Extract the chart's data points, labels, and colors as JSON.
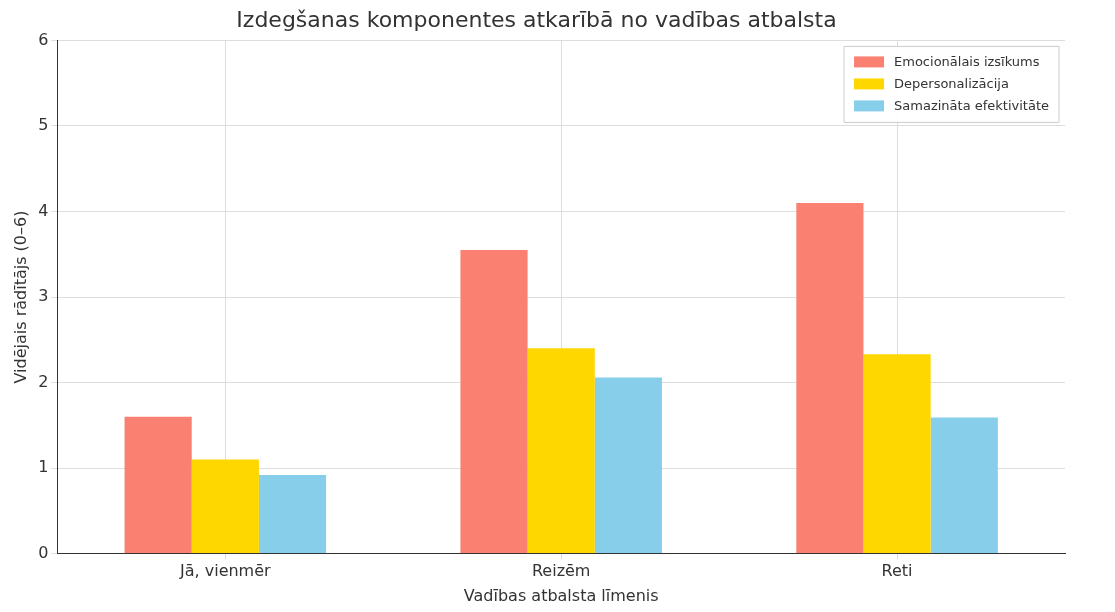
{
  "chart_data": {
    "type": "bar",
    "title": "Izdegšanas komponentes atkarībā no vadības atbalsta",
    "xlabel": "Vadības atbalsta līmenis",
    "ylabel": "Vidējais rādītājs (0–6)",
    "categories": [
      "Jā, vienmēr",
      "Reizēm",
      "Reti"
    ],
    "series": [
      {
        "name": "Emocionālais izsīkums",
        "color": "#fa8072",
        "values": [
          1.6,
          3.55,
          4.1
        ]
      },
      {
        "name": "Depersonalizācija",
        "color": "#ffd700",
        "values": [
          1.1,
          2.4,
          2.33
        ]
      },
      {
        "name": "Samazināta efektivitāte",
        "color": "#87ceeb",
        "values": [
          0.92,
          2.06,
          1.59
        ]
      }
    ],
    "ylim": [
      0,
      6
    ],
    "yticks": [
      0,
      1,
      2,
      3,
      4,
      5,
      6
    ],
    "grid": true,
    "legend": "top right"
  }
}
